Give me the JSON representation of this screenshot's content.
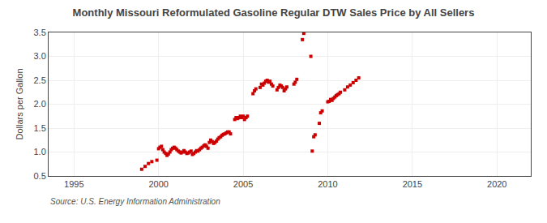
{
  "chart_data": {
    "type": "scatter",
    "title": "Monthly Missouri Reformulated Gasoline Regular DTW Sales Price by All Sellers",
    "y_label": "Dollars per Gallon",
    "annotations": [
      "Source: U.S. Energy Information Administration"
    ],
    "color": "#cc0000",
    "marker": "square",
    "grid": true,
    "xlim": [
      1993.5,
      2022
    ],
    "ylim": [
      0.5,
      3.5
    ],
    "xticks": [
      1995,
      2000,
      2005,
      2010,
      2015,
      2020
    ],
    "yticks": [
      0.5,
      {
        "value": 1.0,
        "label": "1.0"
      },
      1.5,
      {
        "value": 2.0,
        "label": "2.0"
      },
      2.5,
      {
        "value": 3.0,
        "label": "3.0"
      },
      3.5
    ],
    "x": [
      1999.0,
      1999.2,
      1999.4,
      1999.6,
      1999.9,
      2000.0,
      2000.08,
      2000.17,
      2000.25,
      2000.33,
      2000.42,
      2000.5,
      2000.58,
      2000.67,
      2000.75,
      2000.83,
      2000.92,
      2001.0,
      2001.08,
      2001.17,
      2001.25,
      2001.33,
      2001.42,
      2001.5,
      2001.58,
      2001.67,
      2001.75,
      2001.83,
      2001.92,
      2002.0,
      2002.08,
      2002.17,
      2002.25,
      2002.33,
      2002.42,
      2002.5,
      2002.58,
      2002.67,
      2002.75,
      2002.83,
      2002.92,
      2003.0,
      2003.08,
      2003.17,
      2003.25,
      2003.33,
      2003.42,
      2003.5,
      2003.58,
      2003.67,
      2003.75,
      2003.83,
      2003.92,
      2004.0,
      2004.08,
      2004.17,
      2004.25,
      2004.5,
      2004.58,
      2004.67,
      2004.75,
      2004.83,
      2004.92,
      2005.0,
      2005.08,
      2005.17,
      2005.25,
      2005.58,
      2005.67,
      2005.75,
      2006.0,
      2006.08,
      2006.17,
      2006.25,
      2006.33,
      2006.42,
      2006.5,
      2006.58,
      2006.67,
      2006.75,
      2007.0,
      2007.08,
      2007.17,
      2007.25,
      2007.33,
      2007.42,
      2007.5,
      2007.58,
      2008.0,
      2008.08,
      2008.17,
      2008.5,
      2008.58,
      2009.0,
      2009.08,
      2009.17,
      2009.25,
      2009.5,
      2009.58,
      2009.67,
      2010.0,
      2010.08,
      2010.17,
      2010.25,
      2010.33,
      2010.42,
      2010.5,
      2010.58,
      2010.67,
      2010.75,
      2011.0,
      2011.17,
      2011.33,
      2011.5,
      2011.67,
      2011.83
    ],
    "values": [
      0.64,
      0.7,
      0.76,
      0.8,
      0.83,
      1.07,
      1.1,
      1.12,
      1.05,
      1.0,
      0.97,
      0.93,
      0.96,
      1.0,
      1.05,
      1.08,
      1.1,
      1.08,
      1.05,
      1.02,
      1.0,
      0.98,
      1.0,
      1.03,
      1.0,
      0.97,
      0.98,
      1.0,
      1.02,
      0.95,
      0.97,
      1.0,
      1.03,
      1.02,
      1.05,
      1.08,
      1.1,
      1.13,
      1.15,
      1.12,
      1.08,
      1.2,
      1.25,
      1.22,
      1.18,
      1.2,
      1.23,
      1.27,
      1.3,
      1.32,
      1.35,
      1.37,
      1.38,
      1.4,
      1.42,
      1.42,
      1.38,
      1.68,
      1.72,
      1.7,
      1.72,
      1.75,
      1.72,
      1.75,
      1.68,
      1.72,
      1.75,
      2.22,
      2.28,
      2.32,
      2.35,
      2.42,
      2.4,
      2.44,
      2.48,
      2.5,
      2.46,
      2.48,
      2.42,
      2.38,
      2.3,
      2.35,
      2.4,
      2.38,
      2.35,
      2.28,
      2.32,
      2.36,
      2.42,
      2.46,
      2.52,
      3.35,
      3.48,
      3.0,
      1.02,
      1.32,
      1.36,
      1.6,
      1.82,
      1.86,
      2.05,
      2.06,
      2.1,
      2.08,
      2.12,
      2.15,
      2.18,
      2.2,
      2.22,
      2.25,
      2.3,
      2.36,
      2.4,
      2.45,
      2.5,
      2.55
    ]
  }
}
